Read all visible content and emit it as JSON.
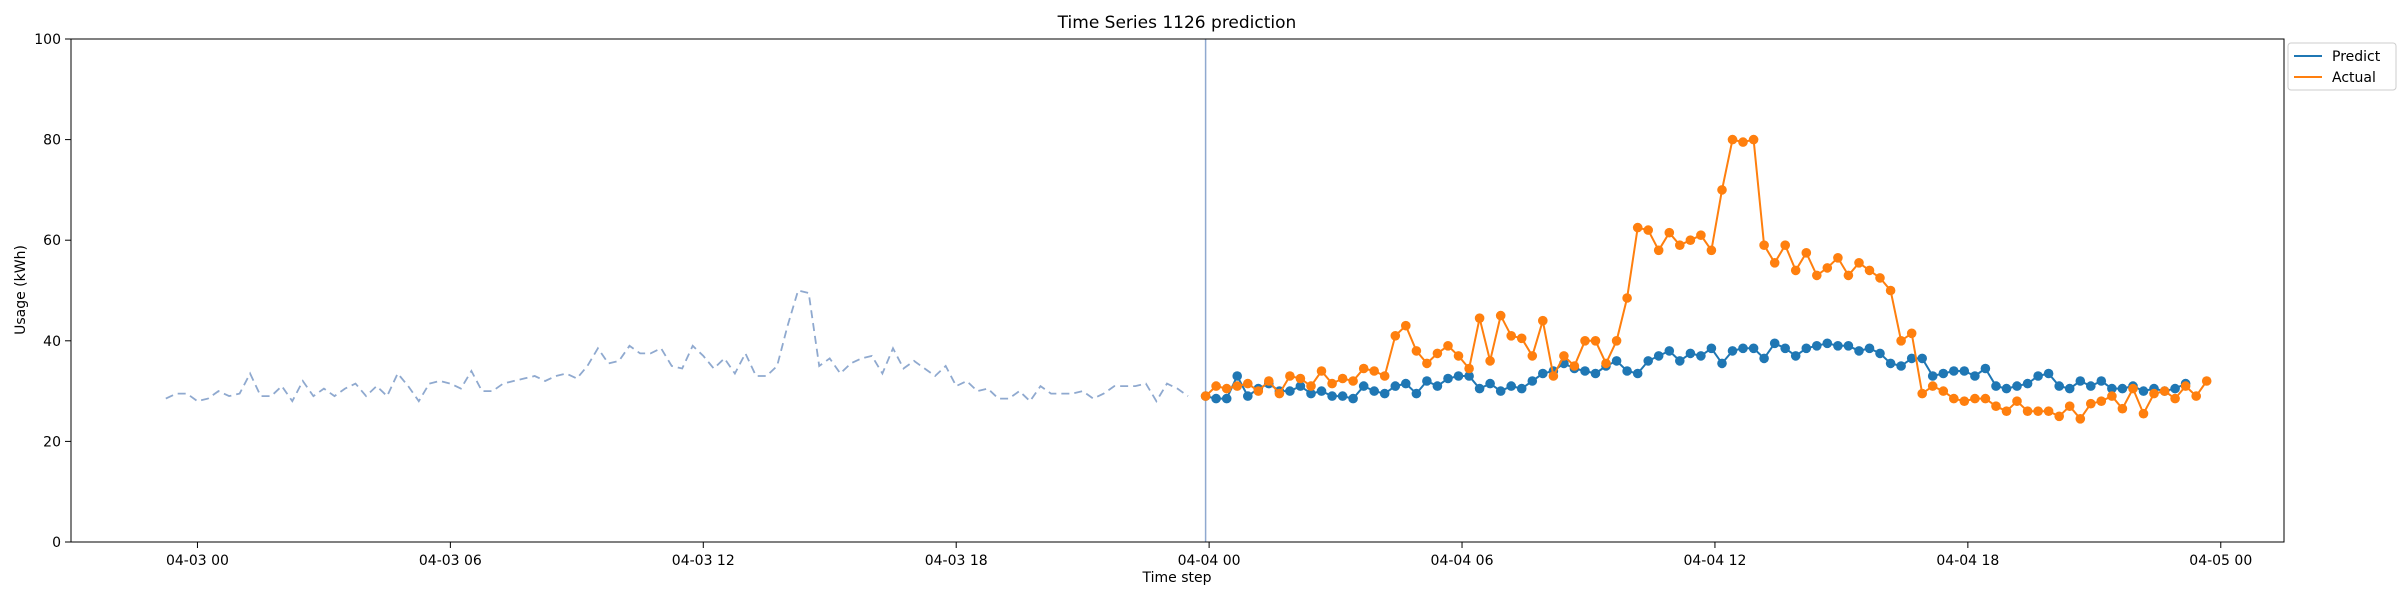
{
  "chart_data": {
    "type": "line",
    "title": "Time Series 1126 prediction",
    "xlabel": "Time step",
    "ylabel": "Usage (kWh)",
    "ylim": [
      0,
      100
    ],
    "xlim": [
      "04-02 21:00",
      "04-05 01:30"
    ],
    "x_ticks": [
      "04-03 00",
      "04-03 06",
      "04-03 12",
      "04-03 18",
      "04-04 00",
      "04-04 06",
      "04-04 12",
      "04-04 18",
      "04-05 00"
    ],
    "y_ticks": [
      "0",
      "20",
      "40",
      "60",
      "80",
      "100"
    ],
    "grid": false,
    "legend_position": "upper-right-outside",
    "forecast_start": "04-03 23:55",
    "history": {
      "style": "dashed",
      "color": "#8fa9cf",
      "x_start": "04-02 23:15",
      "x_step_minutes": 15,
      "values": [
        28.5,
        29.5,
        29.5,
        28,
        28.5,
        30,
        29,
        29.5,
        33.5,
        29,
        29,
        31,
        28,
        32,
        29,
        30.5,
        29,
        30.5,
        31.5,
        29,
        31,
        29,
        33.5,
        31,
        28,
        31.5,
        32,
        31.5,
        30.5,
        34,
        30,
        30,
        31.5,
        32,
        32.5,
        33,
        32,
        33,
        33.5,
        32.5,
        35,
        38.5,
        35.5,
        36,
        39,
        37.5,
        37.5,
        38.5,
        35,
        34.5,
        39,
        37,
        34.5,
        36.5,
        33.5,
        37.5,
        33,
        33,
        35,
        43,
        50,
        49.5,
        35,
        36.5,
        33.5,
        35.5,
        36.5,
        37,
        33.5,
        38.5,
        34.5,
        36,
        34.5,
        33,
        35,
        31,
        32,
        30,
        30.5,
        28.5,
        28.5,
        30,
        28,
        31,
        29.5,
        29.5,
        29.5,
        30,
        28.5,
        29.5,
        31,
        31,
        31,
        31.5,
        28,
        31.5,
        30.5,
        29
      ]
    },
    "x_start": "04-03 23:55",
    "x_step_minutes": 15,
    "series": [
      {
        "name": "Predict",
        "color": "#1f77b4",
        "values": [
          29,
          28.5,
          28.5,
          33,
          29,
          30.5,
          31.5,
          30,
          30,
          31,
          29.5,
          30,
          29,
          29,
          28.5,
          31,
          30,
          29.5,
          31,
          31.5,
          29.5,
          32,
          31,
          32.5,
          33,
          33,
          30.5,
          31.5,
          30,
          31,
          30.5,
          32,
          33.5,
          34,
          35.5,
          34.5,
          34,
          33.5,
          35,
          36,
          34,
          33.5,
          36,
          37,
          38,
          36,
          37.5,
          37,
          38.5,
          35.5,
          38,
          38.5,
          38.5,
          36.5,
          39.5,
          38.5,
          37,
          38.5,
          39,
          39.5,
          39,
          39,
          38,
          38.5,
          37.5,
          35.5,
          35,
          36.5,
          36.5,
          33,
          33.5,
          34,
          34,
          33,
          34.5,
          31,
          30.5,
          31,
          31.5,
          33,
          33.5,
          31,
          30.5,
          32,
          31,
          32,
          30.5,
          30.5,
          31,
          30,
          30.5,
          30,
          30.5,
          31.5
        ]
      },
      {
        "name": "Actual",
        "color": "#ff7f0e",
        "values": [
          29,
          31,
          30.5,
          31,
          31.5,
          30,
          32,
          29.5,
          33,
          32.5,
          31,
          34,
          31.5,
          32.5,
          32,
          34.5,
          34,
          33,
          41,
          43,
          38,
          35.5,
          37.5,
          39,
          37,
          34.5,
          44.5,
          36,
          45,
          41,
          40.5,
          37,
          44,
          33,
          37,
          35,
          40,
          40,
          35.5,
          40,
          48.5,
          62.5,
          62,
          58,
          61.5,
          59,
          60,
          61,
          58,
          70,
          80,
          79.5,
          80,
          59,
          55.5,
          59,
          54,
          57.5,
          53,
          54.5,
          56.5,
          53,
          55.5,
          54,
          52.5,
          50,
          40,
          41.5,
          29.5,
          31,
          30,
          28.5,
          28,
          28.5,
          28.5,
          27,
          26,
          28,
          26,
          26,
          26,
          25,
          27,
          24.5,
          27.5,
          28,
          29,
          26.5,
          30.5,
          25.5,
          29.5,
          30,
          28.5,
          31,
          29,
          32
        ]
      }
    ]
  }
}
